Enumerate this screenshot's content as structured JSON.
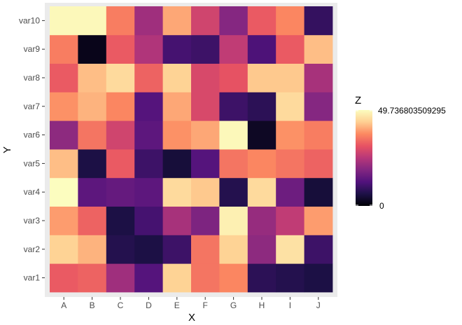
{
  "chart_data": {
    "type": "heatmap",
    "title": "",
    "xlabel": "X",
    "ylabel": "Y",
    "x": [
      "A",
      "B",
      "C",
      "D",
      "E",
      "F",
      "G",
      "H",
      "I",
      "J"
    ],
    "y": [
      "var1",
      "var2",
      "var3",
      "var4",
      "var5",
      "var6",
      "var7",
      "var8",
      "var9",
      "var10"
    ],
    "z": [
      [
        32,
        33,
        22,
        13,
        44,
        35,
        37,
        8,
        7,
        6
      ],
      [
        44,
        41,
        7,
        6,
        10,
        35,
        44,
        20,
        46,
        10
      ],
      [
        39,
        33,
        6,
        11,
        23,
        18,
        48,
        21,
        26,
        39
      ],
      [
        50,
        14,
        15,
        14,
        45,
        43,
        7,
        45,
        16,
        5
      ],
      [
        42,
        6,
        32,
        10,
        5,
        13,
        35,
        37,
        35,
        33
      ],
      [
        20,
        35,
        28,
        14,
        38,
        40,
        49,
        3,
        38,
        36
      ],
      [
        38,
        41,
        37,
        13,
        40,
        29,
        10,
        8,
        45,
        19
      ],
      [
        32,
        42,
        45,
        33,
        44,
        29,
        31,
        43,
        43,
        23
      ],
      [
        36,
        2,
        32,
        24,
        11,
        10,
        26,
        12,
        32,
        42
      ],
      [
        49,
        49,
        36,
        22,
        40,
        28,
        19,
        32,
        37,
        9
      ]
    ],
    "zlim": [
      0,
      49.736803509295
    ],
    "legend": {
      "title": "Z",
      "max_label": "49.736803509295",
      "min_label": "0",
      "placement": "right"
    },
    "colormap": [
      "#000004",
      "#1d1147",
      "#51127c",
      "#822681",
      "#b73779",
      "#e75263",
      "#fc8961",
      "#fecf92",
      "#fcfdbf"
    ],
    "grid": true,
    "panel_background": "#ebebeb"
  }
}
